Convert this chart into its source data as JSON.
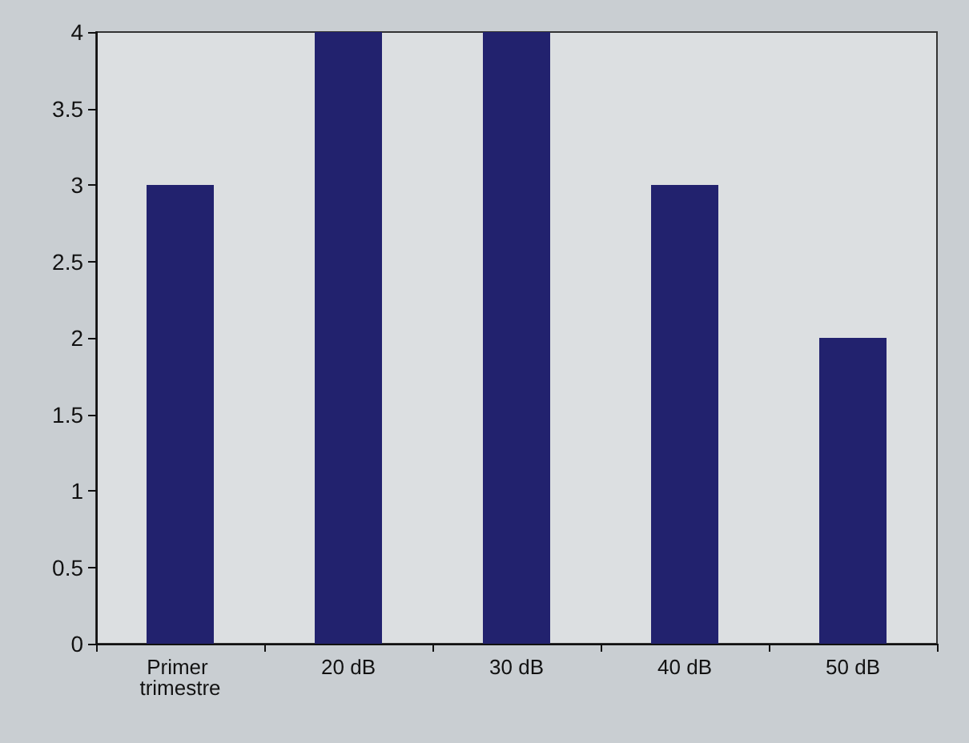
{
  "chart_data": {
    "type": "bar",
    "categories": [
      "Primer trimestre",
      "20 dB",
      "30 dB",
      "40 dB",
      "50 dB"
    ],
    "values": [
      3,
      4,
      4,
      3,
      2
    ],
    "color": "#22226e",
    "ylim": [
      0,
      4
    ],
    "yticks": [
      0,
      0.5,
      1,
      1.5,
      2,
      2.5,
      3,
      3.5,
      4
    ]
  }
}
